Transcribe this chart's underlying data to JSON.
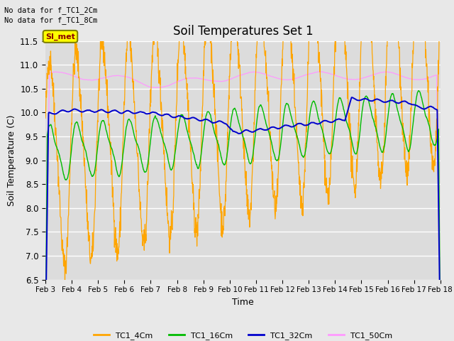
{
  "title": "Soil Temperatures Set 1",
  "ylabel": "Soil Temperature (C)",
  "xlabel": "Time",
  "ylim": [
    6.5,
    11.5
  ],
  "yticks": [
    6.5,
    7.0,
    7.5,
    8.0,
    8.5,
    9.0,
    9.5,
    10.0,
    10.5,
    11.0,
    11.5
  ],
  "x_labels": [
    "Feb 3",
    "Feb 4",
    "Feb 5",
    "Feb 6",
    "Feb 7",
    "Feb 8",
    "Feb 9",
    "Feb 10",
    "Feb 11",
    "Feb 12",
    "Feb 13",
    "Feb 14",
    "Feb 15",
    "Feb 16",
    "Feb 17",
    "Feb 18"
  ],
  "fig_bg_color": "#e8e8e8",
  "axes_bg_color": "#dcdcdc",
  "no_data_text1": "No data for f_TC1_2Cm",
  "no_data_text2": "No data for f_TC1_8Cm",
  "simet_label": "SI_met",
  "legend_entries": [
    "TC1_4Cm",
    "TC1_16Cm",
    "TC1_32Cm",
    "TC1_50Cm"
  ],
  "colors": {
    "TC1_4Cm": "#ffa500",
    "TC1_16Cm": "#00bb00",
    "TC1_32Cm": "#0000cc",
    "TC1_50Cm": "#ff99ff"
  },
  "n_points": 1500,
  "seed": 42
}
